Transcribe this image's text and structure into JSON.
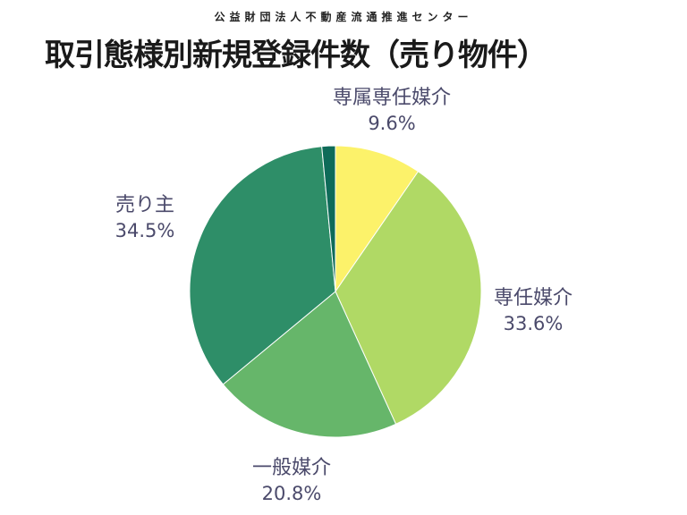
{
  "header": {
    "organization": "公益財団法人不動産流通推進センター",
    "title": "取引態様別新規登録件数（売り物件）"
  },
  "chart_data": {
    "type": "pie",
    "title": "取引態様別新規登録件数（売り物件）",
    "start": "top",
    "direction": "clockwise",
    "slices": [
      {
        "label": "専属専任媒介",
        "value": 9.6,
        "display": "9.6%",
        "color": "#FCF26A"
      },
      {
        "label": "専任媒介",
        "value": 33.6,
        "display": "33.6%",
        "color": "#B0D965"
      },
      {
        "label": "一般媒介",
        "value": 20.8,
        "display": "20.8%",
        "color": "#66B66A"
      },
      {
        "label": "売り主",
        "value": 34.5,
        "display": "34.5%",
        "color": "#2E8E68"
      },
      {
        "label": "",
        "value": 1.5,
        "display": "",
        "color": "#0E6B59"
      }
    ]
  }
}
